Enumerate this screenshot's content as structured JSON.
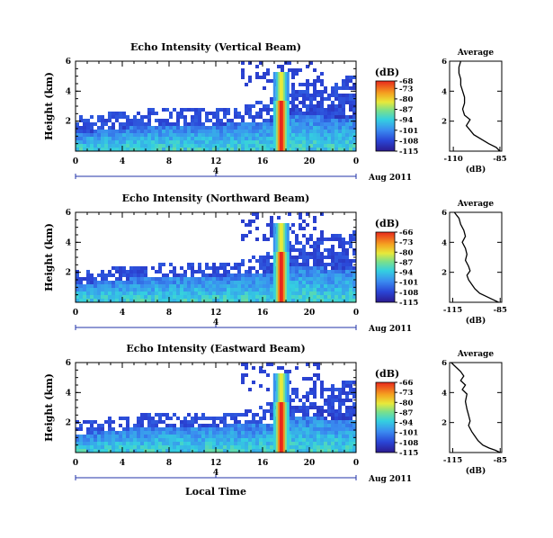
{
  "chart_data": [
    {
      "type": "heatmap",
      "title": "Echo Intensity (Vertical Beam)",
      "ylabel": "Height (km)",
      "xlabel": "",
      "x_ticks": [
        "0",
        "4",
        "8",
        "12",
        "16",
        "20",
        "0"
      ],
      "y_ticks": [
        "6",
        "4",
        "2"
      ],
      "xlim": [
        0,
        24
      ],
      "ylim": [
        0,
        6
      ],
      "date_ticks": [
        "4"
      ],
      "date_label": "Aug 2011",
      "colorbar": {
        "unit": "(dB)",
        "ticks": [
          "-68",
          "-73",
          "-80",
          "-87",
          "-94",
          "-101",
          "-108",
          "-115"
        ],
        "range": [
          -115,
          -68
        ]
      },
      "profile": {
        "title": "Average",
        "xlabel": "(dB)",
        "x_ticks": [
          "-110",
          "-85"
        ],
        "y_ticks": [
          "6",
          "4",
          "2"
        ],
        "xlim": [
          -112,
          -84
        ],
        "ylim": [
          0,
          6
        ],
        "x": [
          -106,
          -107,
          -107,
          -106,
          -106,
          -105,
          -104,
          -104,
          -105,
          -104,
          -101,
          -102,
          -103,
          -101,
          -99,
          -95,
          -91,
          -87,
          -85
        ],
        "y": [
          6.0,
          5.6,
          5.2,
          4.8,
          4.4,
          4.0,
          3.6,
          3.2,
          2.8,
          2.4,
          2.1,
          1.9,
          1.7,
          1.4,
          1.1,
          0.8,
          0.5,
          0.25,
          0.0
        ]
      }
    },
    {
      "type": "heatmap",
      "title": "Echo Intensity (Northward Beam)",
      "ylabel": "Height (km)",
      "xlabel": "",
      "x_ticks": [
        "0",
        "4",
        "8",
        "12",
        "16",
        "20",
        "0"
      ],
      "y_ticks": [
        "6",
        "4",
        "2"
      ],
      "xlim": [
        0,
        24
      ],
      "ylim": [
        0,
        6
      ],
      "date_ticks": [
        "4"
      ],
      "date_label": "Aug 2011",
      "colorbar": {
        "unit": "(dB)",
        "ticks": [
          "-66",
          "-73",
          "-80",
          "-87",
          "-94",
          "-101",
          "-108",
          "-115"
        ],
        "range": [
          -115,
          -66
        ]
      },
      "profile": {
        "title": "Average",
        "xlabel": "(dB)",
        "x_ticks": [
          "-115",
          "-85"
        ],
        "y_ticks": [
          "6",
          "4",
          "2"
        ],
        "xlim": [
          -117,
          -84
        ],
        "ylim": [
          0,
          6
        ],
        "x": [
          -114,
          -111,
          -110,
          -108,
          -107,
          -109,
          -107,
          -106,
          -107,
          -105,
          -104,
          -106,
          -105,
          -103,
          -101,
          -98,
          -94,
          -90,
          -86
        ],
        "y": [
          6.0,
          5.6,
          5.2,
          4.8,
          4.4,
          4.0,
          3.6,
          3.2,
          2.8,
          2.4,
          2.1,
          1.8,
          1.5,
          1.2,
          0.9,
          0.6,
          0.4,
          0.2,
          0.0
        ]
      }
    },
    {
      "type": "heatmap",
      "title": "Echo Intensity (Eastward Beam)",
      "ylabel": "Height (km)",
      "xlabel": "Local Time",
      "x_ticks": [
        "0",
        "4",
        "8",
        "12",
        "16",
        "20",
        "0"
      ],
      "y_ticks": [
        "6",
        "4",
        "2"
      ],
      "xlim": [
        0,
        24
      ],
      "ylim": [
        0,
        6
      ],
      "date_ticks": [
        "4"
      ],
      "date_label": "Aug 2011",
      "colorbar": {
        "unit": "(dB)",
        "ticks": [
          "-66",
          "-73",
          "-80",
          "-87",
          "-94",
          "-101",
          "-108",
          "-115"
        ],
        "range": [
          -115,
          -66
        ]
      },
      "profile": {
        "title": "Average",
        "xlabel": "(dB)",
        "x_ticks": [
          "-115",
          "-85"
        ],
        "y_ticks": [
          "6",
          "4",
          "2"
        ],
        "xlim": [
          -117,
          -84
        ],
        "ylim": [
          0,
          6
        ],
        "x": [
          -116,
          -113,
          -110,
          -108,
          -110,
          -107,
          -109,
          -106,
          -107,
          -106,
          -105,
          -104,
          -105,
          -103,
          -101,
          -99,
          -96,
          -92,
          -88,
          -85
        ],
        "y": [
          6.0,
          5.7,
          5.4,
          5.1,
          4.8,
          4.5,
          4.2,
          3.9,
          3.4,
          2.9,
          2.5,
          2.1,
          1.8,
          1.4,
          1.1,
          0.8,
          0.5,
          0.3,
          0.15,
          0.0
        ]
      }
    }
  ]
}
